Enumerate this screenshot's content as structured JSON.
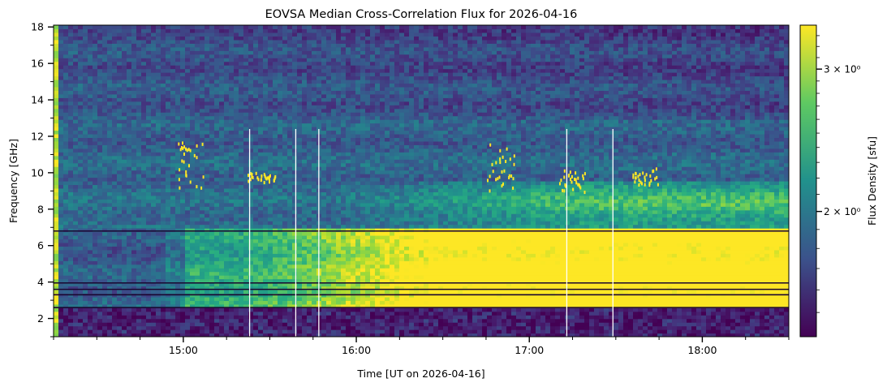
{
  "chart_data": {
    "type": "heatmap",
    "title": "EOVSA Median Cross-Correlation Flux for 2026-04-16",
    "xlabel": "Time [UT on 2026-04-16]",
    "ylabel": "Frequency [GHz]",
    "x_unit": "UT",
    "x_range": [
      "14:15",
      "18:30"
    ],
    "x_ticks": [
      "15:00",
      "16:00",
      "17:00",
      "18:00"
    ],
    "x_minor_tick_interval_minutes": 15,
    "ylim": [
      1.0,
      18.1
    ],
    "y_ticks": [
      2,
      4,
      6,
      8,
      10,
      12,
      14,
      16,
      18
    ],
    "colorbar": {
      "label": "Flux Density [sfu]",
      "colormap": "viridis",
      "scale": "log",
      "range": [
        1.4,
        3.4
      ],
      "tick_labels": [
        "3 × 10⁰",
        "2 × 10⁰"
      ],
      "tick_values": [
        3,
        2
      ]
    },
    "grid": false,
    "features": {
      "bright_band_low_freq": {
        "freq_range_ghz": [
          2.5,
          7.0
        ],
        "time_range": [
          "16:00",
          "18:30"
        ],
        "level": "high"
      },
      "dark_band_lowest": {
        "freq_range_ghz": [
          1.0,
          2.6
        ],
        "level": "low"
      },
      "rfi_lines_ghz": [
        6.8,
        3.95,
        3.6,
        3.3,
        2.6
      ],
      "bursts": [
        {
          "time": "15:02",
          "freq_range_ghz": [
            9.2,
            11.8
          ]
        },
        {
          "time": "15:27",
          "freq_range_ghz": [
            9.5,
            10.1
          ]
        },
        {
          "time": "16:50",
          "freq_range_ghz": [
            9.0,
            11.8
          ]
        },
        {
          "time": "17:15",
          "freq_range_ghz": [
            9.0,
            10.2
          ]
        },
        {
          "time": "17:40",
          "freq_range_ghz": [
            9.4,
            10.3
          ]
        }
      ],
      "data_gaps": [
        "15:23",
        "15:39",
        "15:47",
        "17:13",
        "17:29"
      ]
    },
    "colors": {
      "low": "#440154",
      "mid_low": "#31688e",
      "mid": "#21918c",
      "mid_high": "#5ec962",
      "high": "#fde725"
    }
  }
}
